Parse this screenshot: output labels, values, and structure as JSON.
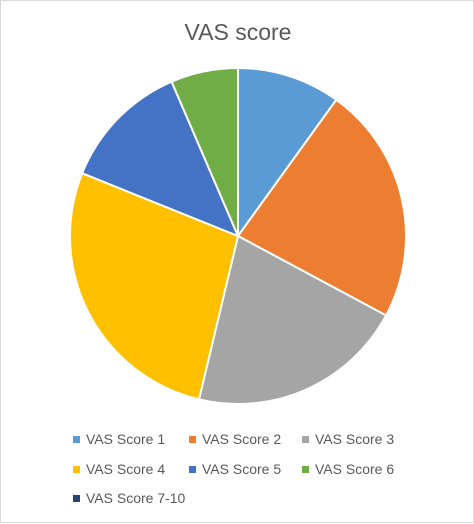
{
  "chart_data": {
    "type": "pie",
    "title": "VAS score",
    "categories": [
      "VAS Score 1",
      "VAS Score 2",
      "VAS Score 3",
      "VAS Score 4",
      "VAS Score 5",
      "VAS Score 6",
      "VAS Score 7-10"
    ],
    "values": [
      10,
      23,
      21,
      27.5,
      12.5,
      6.5,
      0
    ],
    "colors": [
      "#5b9bd5",
      "#ed7d31",
      "#a5a5a5",
      "#ffc000",
      "#4472c4",
      "#70ad47",
      "#264478"
    ],
    "legend_position": "bottom"
  }
}
